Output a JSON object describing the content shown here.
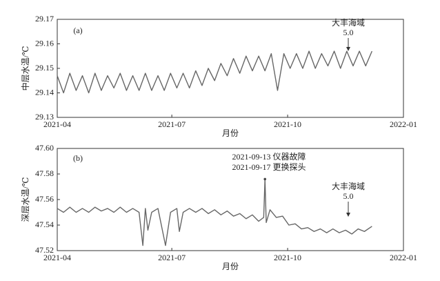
{
  "chart_data": [
    {
      "type": "line",
      "label": "(a)",
      "y_label": "中层水温/℃",
      "x_label": "月份",
      "annotations": [
        "大丰海域",
        "5.0"
      ],
      "xlim": [
        "2021-04",
        "2022-01"
      ],
      "xticks": [
        "2021-04",
        "2021-07",
        "2021-10",
        "2022-01"
      ],
      "ylim": [
        29.13,
        29.17
      ],
      "yticks": [
        29.13,
        29.14,
        29.15,
        29.16,
        29.17
      ],
      "color": "#666666",
      "x": [
        "2021-04-01",
        "2021-04-06",
        "2021-04-11",
        "2021-04-16",
        "2021-04-21",
        "2021-04-26",
        "2021-05-01",
        "2021-05-06",
        "2021-05-11",
        "2021-05-16",
        "2021-05-21",
        "2021-05-26",
        "2021-05-31",
        "2021-06-05",
        "2021-06-10",
        "2021-06-15",
        "2021-06-20",
        "2021-06-25",
        "2021-06-30",
        "2021-07-05",
        "2021-07-10",
        "2021-07-15",
        "2021-07-20",
        "2021-07-25",
        "2021-07-30",
        "2021-08-04",
        "2021-08-09",
        "2021-08-14",
        "2021-08-19",
        "2021-08-24",
        "2021-08-29",
        "2021-09-03",
        "2021-09-08",
        "2021-09-13",
        "2021-09-18",
        "2021-09-23",
        "2021-09-28",
        "2021-10-03",
        "2021-10-08",
        "2021-10-13",
        "2021-10-18",
        "2021-10-23",
        "2021-10-28",
        "2021-11-02",
        "2021-11-07",
        "2021-11-12",
        "2021-11-17",
        "2021-11-22",
        "2021-11-27",
        "2021-12-02",
        "2021-12-07"
      ],
      "values": [
        29.147,
        29.14,
        29.148,
        29.141,
        29.147,
        29.14,
        29.148,
        29.141,
        29.147,
        29.142,
        29.148,
        29.141,
        29.147,
        29.141,
        29.148,
        29.141,
        29.147,
        29.141,
        29.148,
        29.142,
        29.148,
        29.142,
        29.149,
        29.143,
        29.15,
        29.145,
        29.152,
        29.147,
        29.154,
        29.148,
        29.155,
        29.149,
        29.155,
        29.149,
        29.156,
        29.141,
        29.156,
        29.15,
        29.156,
        29.15,
        29.157,
        29.15,
        29.156,
        29.151,
        29.157,
        29.15,
        29.157,
        29.151,
        29.157,
        29.151,
        29.157
      ]
    },
    {
      "type": "line",
      "label": "(b)",
      "y_label": "深层水温/℃",
      "x_label": "月份",
      "annotations": [
        "2021-09-13 仪器故障",
        "2021-09-17 更换探头",
        "大丰海域",
        "5.0"
      ],
      "xlim": [
        "2021-04",
        "2022-01"
      ],
      "xticks": [
        "2021-04",
        "2021-07",
        "2021-10",
        "2022-01"
      ],
      "ylim": [
        47.52,
        47.6
      ],
      "yticks": [
        47.52,
        47.54,
        47.56,
        47.58,
        {
          "value": 47.6,
          "label": "47.60"
        }
      ],
      "color": "#666666",
      "x": [
        "2021-04-01",
        "2021-04-06",
        "2021-04-11",
        "2021-04-16",
        "2021-04-21",
        "2021-04-26",
        "2021-05-01",
        "2021-05-06",
        "2021-05-11",
        "2021-05-16",
        "2021-05-21",
        "2021-05-26",
        "2021-05-31",
        "2021-06-05",
        "2021-06-08",
        "2021-06-10",
        "2021-06-12",
        "2021-06-15",
        "2021-06-20",
        "2021-06-26",
        "2021-06-30",
        "2021-07-05",
        "2021-07-07",
        "2021-07-10",
        "2021-07-15",
        "2021-07-20",
        "2021-07-25",
        "2021-07-30",
        "2021-08-04",
        "2021-08-09",
        "2021-08-14",
        "2021-08-19",
        "2021-08-24",
        "2021-08-29",
        "2021-09-03",
        "2021-09-08",
        "2021-09-12",
        "2021-09-13",
        "2021-09-14",
        "2021-09-17",
        "2021-09-22",
        "2021-09-27",
        "2021-10-02",
        "2021-10-07",
        "2021-10-12",
        "2021-10-17",
        "2021-10-22",
        "2021-10-27",
        "2021-11-01",
        "2021-11-06",
        "2021-11-11",
        "2021-11-16",
        "2021-11-21",
        "2021-11-26",
        "2021-12-01",
        "2021-12-07"
      ],
      "values": [
        47.553,
        47.55,
        47.554,
        47.55,
        47.553,
        47.55,
        47.554,
        47.551,
        47.553,
        47.55,
        47.554,
        47.55,
        47.553,
        47.55,
        47.524,
        47.553,
        47.536,
        47.55,
        47.553,
        47.524,
        47.55,
        47.553,
        47.535,
        47.55,
        47.553,
        47.55,
        47.553,
        47.549,
        47.552,
        47.548,
        47.551,
        47.547,
        47.549,
        47.545,
        47.548,
        47.543,
        47.546,
        47.576,
        47.542,
        47.552,
        47.546,
        47.547,
        47.54,
        47.541,
        47.537,
        47.538,
        47.535,
        47.537,
        47.534,
        47.537,
        47.534,
        47.536,
        47.533,
        47.537,
        47.535,
        47.539
      ]
    }
  ]
}
